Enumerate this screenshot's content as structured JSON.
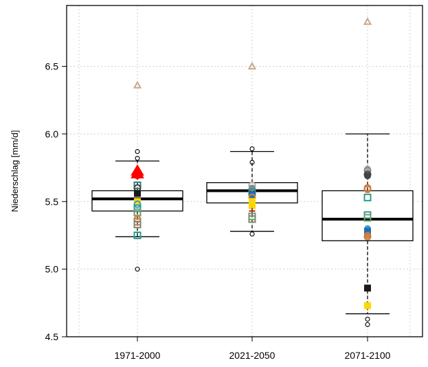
{
  "chart_data": {
    "type": "boxplot",
    "title": "",
    "xlabel": "",
    "ylabel": "Niederschlag [mm/d]",
    "ylim": [
      4.5,
      6.95
    ],
    "y_ticks": [
      "4.5",
      "5.0",
      "5.5",
      "6.0",
      "6.5"
    ],
    "grid": true,
    "categories": [
      "1971-2000",
      "2021-2050",
      "2071-2100"
    ],
    "boxes": [
      {
        "q1": 5.43,
        "median": 5.52,
        "q3": 5.58,
        "whisker_low": 5.24,
        "whisker_high": 5.8,
        "outliers": [
          5.0,
          5.82,
          5.87
        ]
      },
      {
        "q1": 5.49,
        "median": 5.58,
        "q3": 5.64,
        "whisker_low": 5.28,
        "whisker_high": 5.87,
        "outliers": [
          5.26,
          5.79,
          5.89
        ]
      },
      {
        "q1": 5.21,
        "median": 5.37,
        "q3": 5.58,
        "whisker_low": 4.67,
        "whisker_high": 6.0,
        "outliers": [
          4.59,
          4.63
        ]
      }
    ],
    "overlay_points": [
      [
        {
          "y": 6.36,
          "shape": "triangle",
          "color": "#c9a98b"
        },
        {
          "y": 5.73,
          "shape": "triangle-filled",
          "color": "#ff0000"
        },
        {
          "y": 5.71,
          "shape": "triangle-filled",
          "color": "#ff0000"
        },
        {
          "y": 5.69,
          "shape": "circle-filled",
          "color": "#ff0000"
        },
        {
          "y": 5.62,
          "shape": "square",
          "color": "#2a7f7f"
        },
        {
          "y": 5.6,
          "shape": "circle",
          "color": "#444444"
        },
        {
          "y": 5.56,
          "shape": "square-filled",
          "color": "#1a1a1a"
        },
        {
          "y": 5.5,
          "shape": "square-filled",
          "color": "#ffd700"
        },
        {
          "y": 5.48,
          "shape": "circle",
          "color": "#3fa0d0"
        },
        {
          "y": 5.45,
          "shape": "square",
          "color": "#2a9d8f"
        },
        {
          "y": 5.42,
          "shape": "square",
          "color": "#6a9a6a"
        },
        {
          "y": 5.37,
          "shape": "circle",
          "color": "#e07b39"
        },
        {
          "y": 5.35,
          "shape": "square",
          "color": "#c07a4a"
        },
        {
          "y": 5.33,
          "shape": "square",
          "color": "#7a8a6a"
        },
        {
          "y": 5.25,
          "shape": "square",
          "color": "#2a9d8f"
        }
      ],
      [
        {
          "y": 6.5,
          "shape": "triangle",
          "color": "#c9a98b"
        },
        {
          "y": 5.62,
          "shape": "circle",
          "color": "#aaaaaa"
        },
        {
          "y": 5.6,
          "shape": "circle-filled",
          "color": "#888888"
        },
        {
          "y": 5.57,
          "shape": "square",
          "color": "#2a9d8f"
        },
        {
          "y": 5.55,
          "shape": "square-filled",
          "color": "#1e6fb0"
        },
        {
          "y": 5.53,
          "shape": "circle",
          "color": "#e07b39"
        },
        {
          "y": 5.5,
          "shape": "square-filled",
          "color": "#ffd700"
        },
        {
          "y": 5.47,
          "shape": "square-filled",
          "color": "#ffd700"
        },
        {
          "y": 5.43,
          "shape": "plus",
          "color": "#b03030"
        },
        {
          "y": 5.39,
          "shape": "square",
          "color": "#6a9a6a"
        },
        {
          "y": 5.37,
          "shape": "square",
          "color": "#7a8a6a"
        }
      ],
      [
        {
          "y": 6.83,
          "shape": "triangle",
          "color": "#c9a98b"
        },
        {
          "y": 5.74,
          "shape": "circle-filled",
          "color": "#aaaaaa"
        },
        {
          "y": 5.73,
          "shape": "circle",
          "color": "#888888"
        },
        {
          "y": 5.7,
          "shape": "circle",
          "color": "#444444"
        },
        {
          "y": 5.69,
          "shape": "circle-filled",
          "color": "#444444"
        },
        {
          "y": 5.6,
          "shape": "circle",
          "color": "#c07a4a"
        },
        {
          "y": 5.59,
          "shape": "circle",
          "color": "#e07b39"
        },
        {
          "y": 5.53,
          "shape": "square",
          "color": "#2a9d8f"
        },
        {
          "y": 5.4,
          "shape": "square",
          "color": "#2a9d8f"
        },
        {
          "y": 5.38,
          "shape": "square",
          "color": "#6a9a6a"
        },
        {
          "y": 5.3,
          "shape": "circle-filled",
          "color": "#3fa0d0"
        },
        {
          "y": 5.28,
          "shape": "square-filled",
          "color": "#1e6fb0"
        },
        {
          "y": 5.25,
          "shape": "circle-filled",
          "color": "#e07b39"
        },
        {
          "y": 5.24,
          "shape": "circle",
          "color": "#c07a4a"
        },
        {
          "y": 4.86,
          "shape": "square-filled",
          "color": "#1a1a1a"
        },
        {
          "y": 4.73,
          "shape": "square-filled",
          "color": "#ffd700"
        }
      ]
    ]
  }
}
